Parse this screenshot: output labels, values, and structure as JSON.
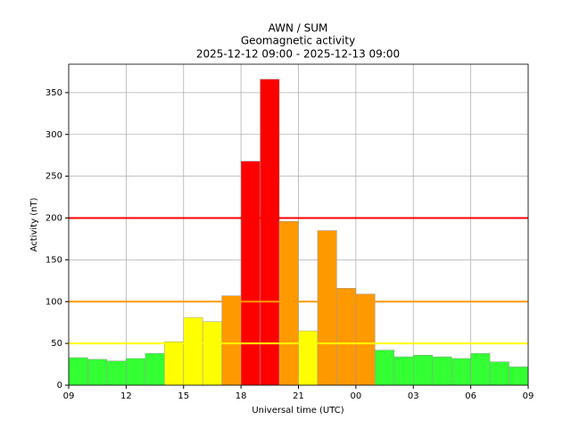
{
  "chart_data": {
    "type": "histogram",
    "title": [
      "AWN / SUM",
      "Geomagnetic activity",
      "2025-12-12 09:00 - 2025-12-13 09:00"
    ],
    "xlabel": "Universal time (UTC)",
    "ylabel": "Activity (nT)",
    "bins": [
      0,
      1,
      2,
      3,
      4,
      5,
      6,
      7,
      8,
      9,
      10,
      11,
      12,
      13,
      14,
      15,
      16,
      17,
      18,
      19,
      20,
      21,
      22,
      23,
      24
    ],
    "values": [
      33,
      31,
      29,
      32,
      38,
      52,
      81,
      76,
      107,
      268,
      366,
      196,
      65,
      185,
      116,
      109,
      42,
      34,
      36,
      34,
      32,
      38,
      28,
      22
    ],
    "colors": [
      "#33ff33",
      "#33ff33",
      "#33ff33",
      "#33ff33",
      "#33ff33",
      "#ffff00",
      "#ffff00",
      "#ffff00",
      "#ff9900",
      "#ff0000",
      "#ff0000",
      "#ff9900",
      "#ffff00",
      "#ff9900",
      "#ff9900",
      "#ff9900",
      "#33ff33",
      "#33ff33",
      "#33ff33",
      "#33ff33",
      "#33ff33",
      "#33ff33",
      "#33ff33",
      "#33ff33"
    ],
    "thresholds": [
      {
        "value": 50,
        "color": "#ffff00"
      },
      {
        "value": 100,
        "color": "#ff9900"
      },
      {
        "value": 200,
        "color": "#ff0000"
      }
    ],
    "xlim": [
      0,
      24
    ],
    "xticks": [
      {
        "value": 0,
        "label": "09"
      },
      {
        "value": 3,
        "label": "12"
      },
      {
        "value": 6,
        "label": "15"
      },
      {
        "value": 9,
        "label": "18"
      },
      {
        "value": 12,
        "label": "21"
      },
      {
        "value": 15,
        "label": "00"
      },
      {
        "value": 18,
        "label": "03"
      },
      {
        "value": 21,
        "label": "06"
      },
      {
        "value": 24,
        "label": "09"
      }
    ],
    "ylim": [
      0,
      384
    ],
    "yticks": [
      0,
      50,
      100,
      150,
      200,
      250,
      300,
      350
    ],
    "grid": true
  }
}
